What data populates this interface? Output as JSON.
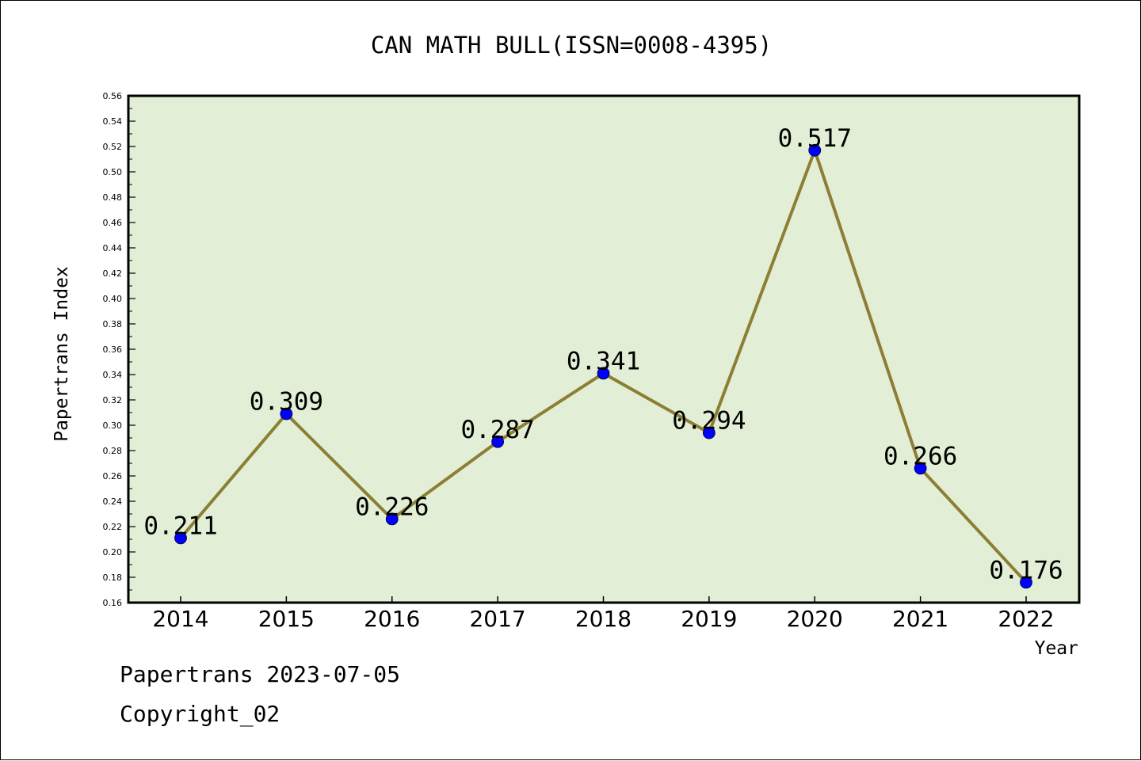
{
  "chart_data": {
    "type": "line",
    "title": "CAN MATH BULL(ISSN=0008-4395)",
    "xlabel": "Year",
    "ylabel": "Papertrans Index",
    "categories": [
      "2014",
      "2015",
      "2016",
      "2017",
      "2018",
      "2019",
      "2020",
      "2021",
      "2022"
    ],
    "series": [
      {
        "values": [
          0.211,
          0.309,
          0.226,
          0.287,
          0.341,
          0.294,
          0.517,
          0.266,
          0.176
        ]
      }
    ],
    "data_labels": [
      "0.211",
      "0.309",
      "0.226",
      "0.287",
      "0.341",
      "0.294",
      "0.517",
      "0.266",
      "0.176"
    ],
    "ylim": [
      0.16,
      0.56
    ],
    "yticks": [
      "0.16",
      "0.18",
      "0.20",
      "0.22",
      "0.24",
      "0.26",
      "0.28",
      "0.30",
      "0.32",
      "0.34",
      "0.36",
      "0.38",
      "0.40",
      "0.42",
      "0.44",
      "0.46",
      "0.48",
      "0.50",
      "0.52",
      "0.54",
      "0.56"
    ],
    "grid": false,
    "colors": {
      "plot_background": "#e2efd6",
      "line": "#8c7f35",
      "marker": "#0000ff"
    }
  },
  "footer": {
    "line1": "Papertrans 2023-07-05",
    "line2": "Copyright_02"
  }
}
